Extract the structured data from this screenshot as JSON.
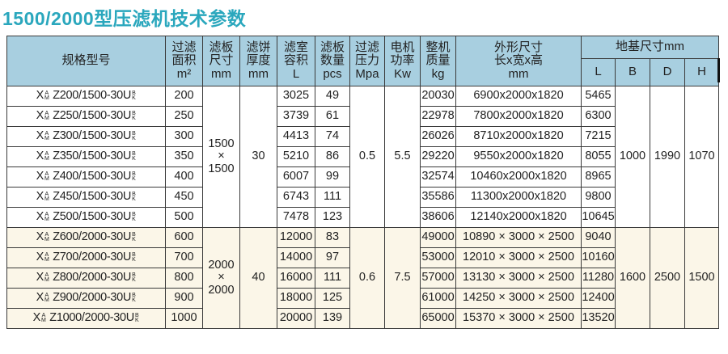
{
  "title": "1500/2000型压滤机技术参数",
  "headers": {
    "model": "规格型号",
    "area": [
      "过滤",
      "面积",
      "m²"
    ],
    "plate_size": [
      "滤板",
      "尺寸",
      "mm"
    ],
    "cake": [
      "滤饼",
      "厚度",
      "mm"
    ],
    "chamber": [
      "滤室",
      "容积",
      "L"
    ],
    "plates": [
      "滤板",
      "数量",
      "pcs"
    ],
    "pressure": [
      "过滤",
      "压力",
      "Mpa"
    ],
    "power": [
      "电机",
      "功率",
      "Kw"
    ],
    "weight": [
      "整机",
      "质量",
      "kg"
    ],
    "dims": [
      "外形尺寸",
      "长x宽x高",
      "mm"
    ],
    "base": "地基尺寸mm",
    "base_cols": [
      "L",
      "B",
      "D",
      "H"
    ]
  },
  "group1": {
    "plate_size": [
      "1500",
      "×",
      "1500"
    ],
    "cake": "30",
    "pressure": "0.5",
    "power": "5.5",
    "base_b": "1000",
    "base_d": "1990",
    "base_h": "1070",
    "rows": [
      {
        "model": "X^A_M Z200/1500-30U^B_K",
        "area": "200",
        "chamber": "3025",
        "plates": "49",
        "weight": "20030",
        "dims": "6900x2000x1820",
        "base_l": "5465"
      },
      {
        "model": "X^A_M Z250/1500-30U^B_K",
        "area": "250",
        "chamber": "3739",
        "plates": "61",
        "weight": "22978",
        "dims": "7800x2000x1820",
        "base_l": "6300"
      },
      {
        "model": "X^A_M Z300/1500-30U^B_K",
        "area": "300",
        "chamber": "4413",
        "plates": "74",
        "weight": "26026",
        "dims": "8710x2000x1820",
        "base_l": "7215"
      },
      {
        "model": "X^A_M Z350/1500-30U^B_K",
        "area": "350",
        "chamber": "5210",
        "plates": "86",
        "weight": "29220",
        "dims": "9550x2000x1820",
        "base_l": "8055"
      },
      {
        "model": "X^A_M Z400/1500-30U^B_K",
        "area": "400",
        "chamber": "6007",
        "plates": "99",
        "weight": "32574",
        "dims": "10460x2000x1820",
        "base_l": "8965"
      },
      {
        "model": "X^A_M Z450/1500-30U^B_K",
        "area": "450",
        "chamber": "6743",
        "plates": "111",
        "weight": "35586",
        "dims": "11300x2000x1820",
        "base_l": "9800"
      },
      {
        "model": "X^A_M Z500/1500-30U^B_K",
        "area": "500",
        "chamber": "7478",
        "plates": "123",
        "weight": "38606",
        "dims": "12140x2000x1820",
        "base_l": "10645"
      }
    ]
  },
  "group2": {
    "plate_size": [
      "2000",
      "×",
      "2000"
    ],
    "cake": "40",
    "pressure": "0.6",
    "power": "7.5",
    "base_b": "1600",
    "base_d": "2500",
    "base_h": "1500",
    "rows": [
      {
        "model": "X^A_M Z600/2000-30U^B_K",
        "area": "600",
        "chamber": "12000",
        "plates": "83",
        "weight": "49000",
        "dims": "10890 × 3000 × 2500",
        "base_l": "9040"
      },
      {
        "model": "X^A_M Z700/2000-30U^B_K",
        "area": "700",
        "chamber": "14000",
        "plates": "97",
        "weight": "53000",
        "dims": "12010 × 3000 × 2500",
        "base_l": "10160"
      },
      {
        "model": "X^A_M Z800/2000-30U^B_K",
        "area": "800",
        "chamber": "16000",
        "plates": "111",
        "weight": "57000",
        "dims": "13130 × 3000 × 2500",
        "base_l": "11280"
      },
      {
        "model": "X^A_M Z900/2000-30U^B_K",
        "area": "900",
        "chamber": "18000",
        "plates": "125",
        "weight": "61000",
        "dims": "14250 × 3000 × 2500",
        "base_l": "12400"
      },
      {
        "model": "X^A_M Z1000/2000-30U^B_K",
        "area": "1000",
        "chamber": "20000",
        "plates": "139",
        "weight": "65000",
        "dims": "15370 × 3000 × 2500",
        "base_l": "13520"
      }
    ]
  }
}
